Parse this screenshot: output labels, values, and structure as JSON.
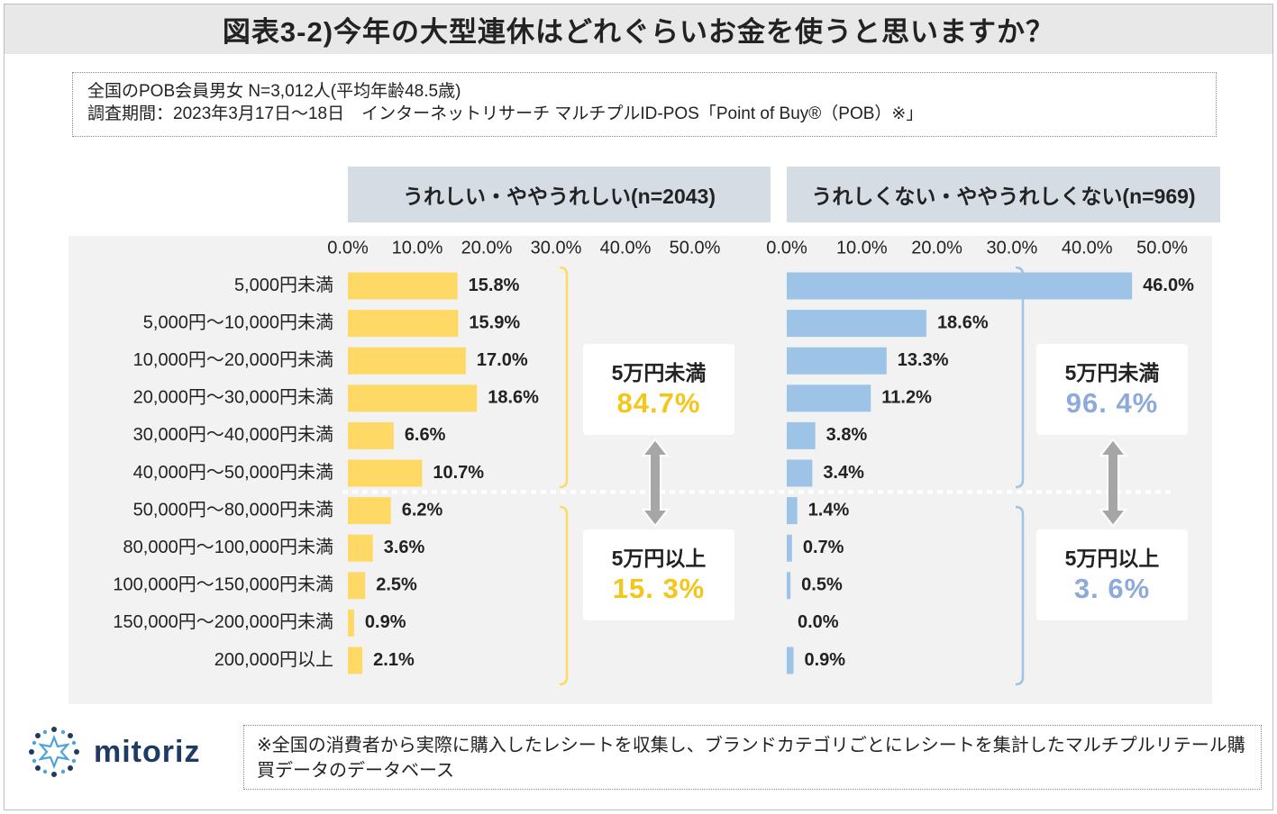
{
  "title": "図表3-2)今年の大型連休はどれぐらいお金を使うと思いますか？",
  "info": {
    "line1": "全国のPOB会員男女 N=3,012人(平均年齢48.5歳)",
    "line2": "調査期間：2023年3月17日～18日　インターネットリサーチ マルチプルID-POS「Point of Buy®（POB）※」"
  },
  "footnote": "※全国の消費者から実際に購入したレシートを収集し、ブランドカテゴリごとにレシートを集計したマルチプルリテール購買データのデータベース",
  "logo": {
    "text": "mitoriz",
    "icon": "sun-burst-logo-icon"
  },
  "colors": {
    "left": "#ffd966",
    "right": "#9dc3e6",
    "leftAccent": "#f5c518",
    "rightAccent": "#8eaadb",
    "arrow": "#a6a6a6"
  },
  "chart_data": [
    {
      "type": "bar",
      "orientation": "horizontal",
      "title": "うれしい・ややうれしい(n=2043)",
      "categories": [
        "5,000円未満",
        "5,000円～10,000円未満",
        "10,000円～20,000円未満",
        "20,000円～30,000円未満",
        "30,000円～40,000円未満",
        "40,000円～50,000円未満",
        "50,000円～80,000円未満",
        "80,000円～100,000円未満",
        "100,000円～150,000円未満",
        "150,000円～200,000円未満",
        "200,000円以上"
      ],
      "values": [
        15.8,
        15.9,
        17.0,
        18.6,
        6.6,
        10.7,
        6.2,
        3.6,
        2.5,
        0.9,
        2.1
      ],
      "labels": [
        "15.8%",
        "15.9%",
        "17.0%",
        "18.6%",
        "6.6%",
        "10.7%",
        "6.2%",
        "3.6%",
        "2.5%",
        "0.9%",
        "2.1%"
      ],
      "xticks": [
        "0.0%",
        "10.0%",
        "20.0%",
        "30.0%",
        "40.0%",
        "50.0%"
      ],
      "xlim": [
        0,
        50
      ],
      "summary": [
        {
          "label": "5万円未満",
          "value": "84.7%"
        },
        {
          "label": "5万円以上",
          "value": "15. 3%"
        }
      ]
    },
    {
      "type": "bar",
      "orientation": "horizontal",
      "title": "うれしくない・ややうれしくない(n=969)",
      "categories": [
        "5,000円未満",
        "5,000円～10,000円未満",
        "10,000円～20,000円未満",
        "20,000円～30,000円未満",
        "30,000円～40,000円未満",
        "40,000円～50,000円未満",
        "50,000円～80,000円未満",
        "80,000円～100,000円未満",
        "100,000円～150,000円未満",
        "150,000円～200,000円未満",
        "200,000円以上"
      ],
      "values": [
        46.0,
        18.6,
        13.3,
        11.2,
        3.8,
        3.4,
        1.4,
        0.7,
        0.5,
        0.0,
        0.9
      ],
      "labels": [
        "46.0%",
        "18.6%",
        "13.3%",
        "11.2%",
        "3.8%",
        "3.4%",
        "1.4%",
        "0.7%",
        "0.5%",
        "0.0%",
        "0.9%"
      ],
      "xticks": [
        "0.0%",
        "10.0%",
        "20.0%",
        "30.0%",
        "40.0%",
        "50.0%"
      ],
      "xlim": [
        0,
        50
      ],
      "summary": [
        {
          "label": "5万円未満",
          "value": "96. 4%"
        },
        {
          "label": "5万円以上",
          "value": "3. 6%"
        }
      ]
    }
  ]
}
